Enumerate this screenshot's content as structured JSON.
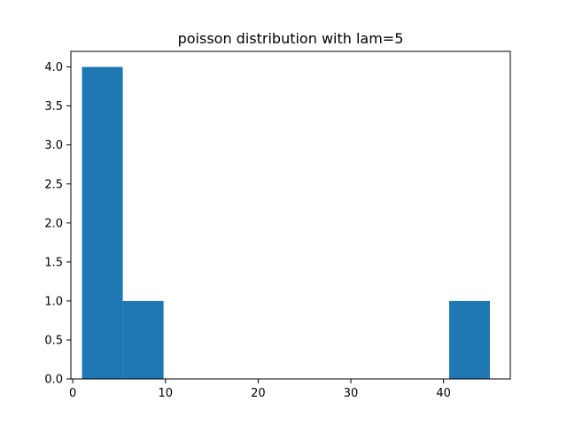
{
  "chart_data": {
    "type": "bar",
    "title": "poisson distribution with lam=5",
    "xlabel": "",
    "ylabel": "",
    "xlim": [
      -0.2,
      47.2
    ],
    "ylim": [
      0,
      4.2
    ],
    "bins": [
      {
        "x0": 1.0,
        "x1": 5.4,
        "value": 4
      },
      {
        "x0": 5.4,
        "x1": 9.8,
        "value": 1
      },
      {
        "x0": 9.8,
        "x1": 14.2,
        "value": 0
      },
      {
        "x0": 14.2,
        "x1": 18.6,
        "value": 0
      },
      {
        "x0": 18.6,
        "x1": 23.0,
        "value": 0
      },
      {
        "x0": 23.0,
        "x1": 27.4,
        "value": 0
      },
      {
        "x0": 27.4,
        "x1": 31.8,
        "value": 0
      },
      {
        "x0": 31.8,
        "x1": 36.2,
        "value": 0
      },
      {
        "x0": 36.2,
        "x1": 40.6,
        "value": 0
      },
      {
        "x0": 40.6,
        "x1": 45.0,
        "value": 1
      }
    ],
    "x_ticks": [
      {
        "value": 0,
        "label": "0"
      },
      {
        "value": 10,
        "label": "10"
      },
      {
        "value": 20,
        "label": "20"
      },
      {
        "value": 30,
        "label": "30"
      },
      {
        "value": 40,
        "label": "40"
      }
    ],
    "y_ticks": [
      {
        "value": 0.0,
        "label": "0.0"
      },
      {
        "value": 0.5,
        "label": "0.5"
      },
      {
        "value": 1.0,
        "label": "1.0"
      },
      {
        "value": 1.5,
        "label": "1.5"
      },
      {
        "value": 2.0,
        "label": "2.0"
      },
      {
        "value": 2.5,
        "label": "2.5"
      },
      {
        "value": 3.0,
        "label": "3.0"
      },
      {
        "value": 3.5,
        "label": "3.5"
      },
      {
        "value": 4.0,
        "label": "4.0"
      }
    ],
    "grid": false,
    "bar_color": "#1f77b4"
  }
}
